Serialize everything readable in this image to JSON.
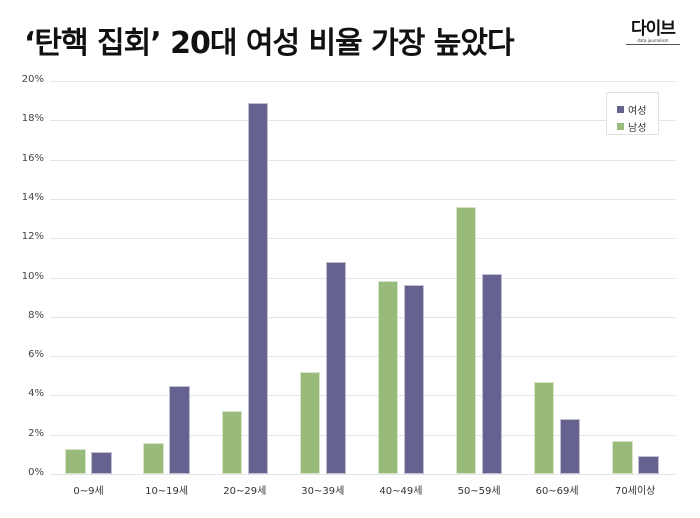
{
  "header": {
    "title": "‘탄핵 집회’ 20대 여성 비율 가장 높았다",
    "logo_text": "다이브",
    "logo_subtext": "data journalism"
  },
  "colors": {
    "female": "#65628f",
    "male": "#98bb7b",
    "grid": "#e4e4e4"
  },
  "legend": {
    "items": [
      {
        "label": "여성",
        "color": "#65628f"
      },
      {
        "label": "남성",
        "color": "#98bb7b"
      }
    ]
  },
  "y_ticks": [
    "0%",
    "2%",
    "4%",
    "6%",
    "8%",
    "10%",
    "12%",
    "14%",
    "16%",
    "18%",
    "20%"
  ],
  "chart_data": {
    "type": "bar",
    "title": "‘탄핵 집회’ 20대 여성 비율 가장 높았다",
    "xlabel": "",
    "ylabel": "",
    "ylim": [
      0,
      20
    ],
    "y_unit": "%",
    "grid": true,
    "legend_position": "top-right",
    "categories": [
      "0~9세",
      "10~19세",
      "20~29세",
      "30~39세",
      "40~49세",
      "50~59세",
      "60~69세",
      "70세이상"
    ],
    "series": [
      {
        "name": "남성",
        "color": "#98bb7b",
        "values": [
          1.3,
          1.6,
          3.2,
          5.2,
          9.8,
          13.6,
          4.7,
          1.7
        ]
      },
      {
        "name": "여성",
        "color": "#65628f",
        "values": [
          1.1,
          4.5,
          18.9,
          10.8,
          9.6,
          10.2,
          2.8,
          0.9
        ]
      }
    ]
  }
}
